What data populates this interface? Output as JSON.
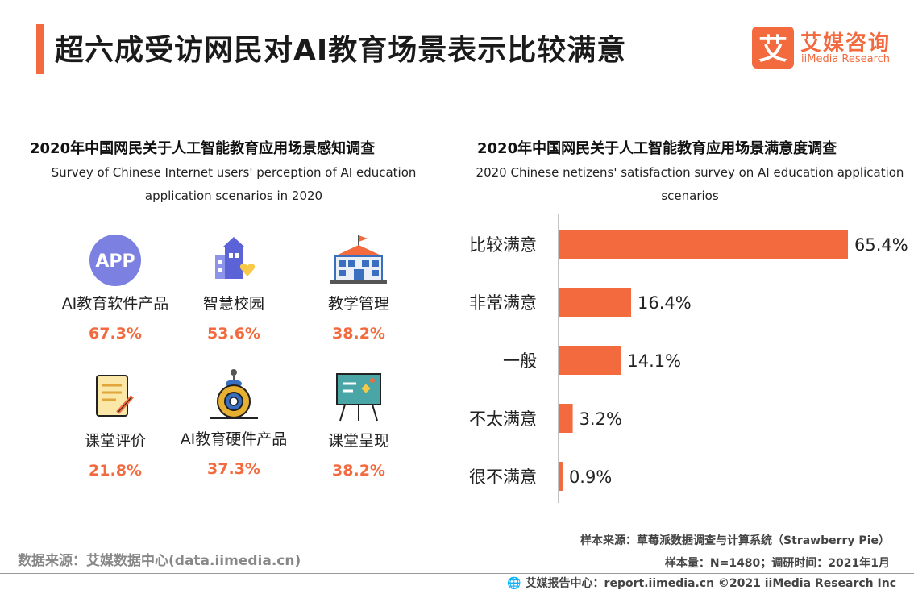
{
  "page": {
    "title": "超六成受访网民对AI教育场景表示比较满意"
  },
  "logo": {
    "cn": "艾媒咨询",
    "en": "iiMedia Research",
    "mark": "艾"
  },
  "left": {
    "title": "2020年中国网民关于人工智能教育应用场景感知调查",
    "subtitle_line1": "Survey of Chinese Internet users' perception of AI education",
    "subtitle_line2": "application scenarios in 2020",
    "items": [
      {
        "label": "AI教育软件产品",
        "value": "67.3%",
        "icon": "app-icon"
      },
      {
        "label": "智慧校园",
        "value": "53.6%",
        "icon": "smart-campus-icon"
      },
      {
        "label": "教学管理",
        "value": "38.2%",
        "icon": "school-building-icon"
      },
      {
        "label": "课堂评价",
        "value": "21.8%",
        "icon": "evaluation-document-icon"
      },
      {
        "label": "AI教育硬件产品",
        "value": "37.3%",
        "icon": "robot-icon"
      },
      {
        "label": "课堂呈现",
        "value": "38.2%",
        "icon": "presentation-board-icon"
      }
    ],
    "app_icon_text": "APP"
  },
  "right": {
    "title": "2020年中国网民关于人工智能教育应用场景满意度调查",
    "subtitle_line1": "2020 Chinese netizens' satisfaction survey on AI education application",
    "subtitle_line2": "scenarios"
  },
  "chart_data": {
    "type": "bar",
    "orientation": "horizontal",
    "categories": [
      "比较满意",
      "非常满意",
      "一般",
      "不太满意",
      "很不满意"
    ],
    "values": [
      65.4,
      16.4,
      14.1,
      3.2,
      0.9
    ],
    "value_labels": [
      "65.4%",
      "16.4%",
      "14.1%",
      "3.2%",
      "0.9%"
    ],
    "xlim": [
      0,
      65.4
    ],
    "bar_color": "#f26a3d",
    "grid": false
  },
  "source": {
    "sample_source": "样本来源：草莓派数据调查与计算系统（Strawberry Pie）",
    "sample_size": "样本量：N=1480；调研时间：2021年1月",
    "data_source": "数据来源：艾媒数据中心(data.iimedia.cn)",
    "footer": "艾媒报告中心：report.iimedia.cn  ©2021  iiMedia Research  Inc"
  },
  "colors": {
    "accent": "#f26a3d",
    "app_purple": "#7c80e0",
    "building_blue": "#3a6fbf"
  }
}
